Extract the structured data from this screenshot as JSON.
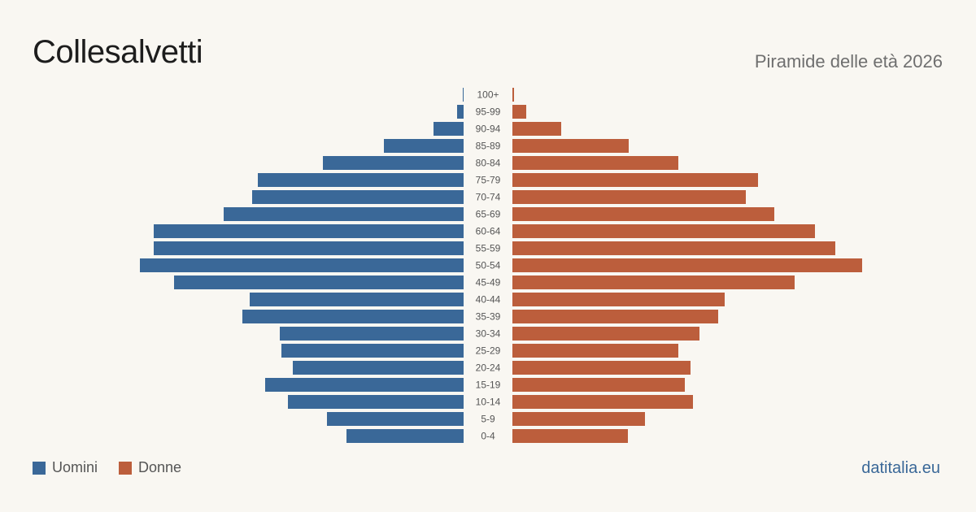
{
  "header": {
    "title": "Collesalvetti",
    "subtitle": "Piramide delle età 2026"
  },
  "legend": {
    "men_label": "Uomini",
    "women_label": "Donne"
  },
  "footer": {
    "source": "datitalia.eu"
  },
  "colors": {
    "men": "#3a6898",
    "women": "#bc5e3c"
  },
  "chart_data": {
    "type": "bar",
    "orientation": "horizontal-pyramid",
    "title": "Piramide delle età 2026",
    "categories": [
      "100+",
      "95-99",
      "90-94",
      "85-89",
      "80-84",
      "75-79",
      "70-74",
      "65-69",
      "60-64",
      "55-59",
      "50-54",
      "45-49",
      "40-44",
      "35-39",
      "30-34",
      "25-29",
      "20-24",
      "15-19",
      "10-14",
      "5-9",
      "0-4"
    ],
    "series": [
      {
        "name": "Uomini",
        "values": [
          1,
          8,
          37,
          98,
          173,
          253,
          260,
          295,
          381,
          381,
          398,
          356,
          263,
          272,
          226,
          224,
          210,
          244,
          216,
          168,
          144
        ]
      },
      {
        "name": "Donne",
        "values": [
          2,
          17,
          60,
          143,
          204,
          302,
          287,
          322,
          372,
          397,
          430,
          347,
          261,
          253,
          230,
          204,
          219,
          212,
          222,
          163,
          142
        ]
      }
    ],
    "xlim": [
      0,
      430
    ],
    "grid": false,
    "legend_position": "bottom-left"
  }
}
